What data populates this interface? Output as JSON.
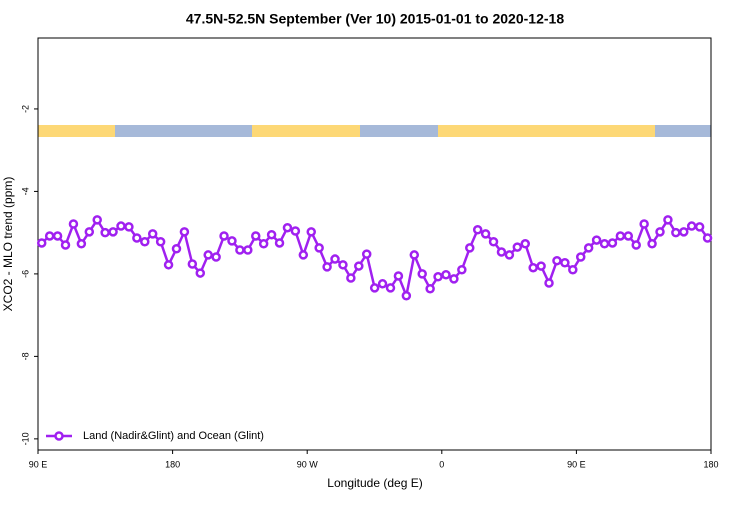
{
  "chart_data": {
    "type": "line",
    "title": "47.5N-52.5N September (Ver 10)   2015-01-01 to 2020-12-18",
    "x_label": "Longitude (deg E)",
    "y_label": "XCO2 - MLO trend (ppm)",
    "xlim": [
      90,
      540
    ],
    "xticks": [
      {
        "value": 90,
        "label": "90 E"
      },
      {
        "value": 180,
        "label": "180"
      },
      {
        "value": 270,
        "label": "90 W"
      },
      {
        "value": 360,
        "label": "0"
      },
      {
        "value": 450,
        "label": "90 E"
      },
      {
        "value": 540,
        "label": "180"
      }
    ],
    "ylim": [
      -10.27,
      -0.28
    ],
    "yticks": [
      -2,
      -4,
      -6,
      -8,
      -10
    ],
    "legend": "bottom-left",
    "x": [
      92.5,
      97.8,
      103.1,
      108.4,
      113.7,
      119.0,
      124.3,
      129.6,
      134.9,
      140.2,
      145.5,
      150.8,
      156.1,
      161.4,
      166.7,
      172.0,
      177.3,
      182.6,
      187.9,
      193.2,
      198.5,
      203.8,
      209.1,
      214.4,
      219.7,
      225.0,
      230.3,
      235.6,
      240.9,
      246.2,
      251.5,
      256.8,
      262.1,
      267.4,
      272.7,
      278.0,
      283.3,
      288.6,
      293.9,
      299.2,
      304.5,
      309.8,
      315.1,
      320.4,
      325.7,
      331.0,
      336.3,
      341.6,
      346.9,
      352.2,
      357.5,
      362.8,
      368.1,
      373.4,
      378.7,
      384.0,
      389.3,
      394.6,
      399.9,
      405.2,
      410.5,
      415.8,
      421.1,
      426.4,
      431.7,
      437.0,
      442.3,
      447.6,
      452.9,
      458.2,
      463.5,
      468.8,
      474.1,
      479.4,
      484.7,
      490.0,
      495.3,
      500.6,
      505.9,
      511.2,
      516.5,
      521.8,
      527.1,
      532.4,
      537.7
    ],
    "series": [
      {
        "name": "Land (Nadir&Glint) and Ocean (Glint)",
        "color": "#a020f0",
        "values": [
          -5.25,
          -5.08,
          -5.08,
          -5.3,
          -4.79,
          -5.27,
          -4.98,
          -4.69,
          -5.0,
          -4.98,
          -4.84,
          -4.86,
          -5.13,
          -5.22,
          -5.03,
          -5.22,
          -5.78,
          -5.39,
          -4.98,
          -5.76,
          -5.98,
          -5.54,
          -5.59,
          -5.08,
          -5.2,
          -5.42,
          -5.42,
          -5.08,
          -5.27,
          -5.05,
          -5.25,
          -4.88,
          -4.96,
          -5.54,
          -4.98,
          -5.37,
          -5.83,
          -5.64,
          -5.78,
          -6.1,
          -5.81,
          -5.52,
          -6.34,
          -6.24,
          -6.34,
          -6.05,
          -6.53,
          -5.54,
          -6.0,
          -6.36,
          -6.07,
          -6.02,
          -6.12,
          -5.9,
          -5.37,
          -4.93,
          -5.03,
          -5.22,
          -5.47,
          -5.54,
          -5.35,
          -5.27,
          -5.85,
          -5.81,
          -6.22,
          -5.68,
          -5.73,
          -5.9,
          -5.59,
          -5.37,
          -5.18,
          -5.27,
          -5.25,
          -5.08,
          -5.08,
          -5.3,
          -4.79,
          -5.27,
          -4.98,
          -4.69,
          -5.0,
          -4.98,
          -4.84,
          -4.86,
          -5.13
        ]
      }
    ]
  }
}
